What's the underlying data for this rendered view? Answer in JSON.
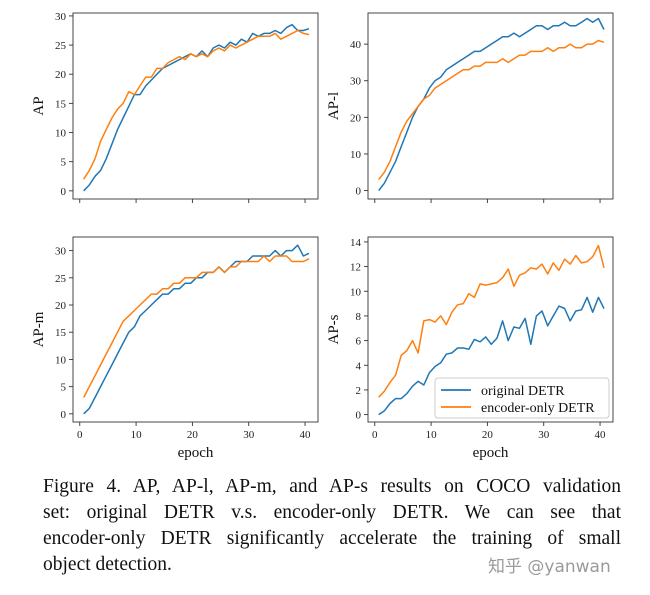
{
  "chart_data": [
    {
      "type": "line",
      "ylabel": "AP",
      "xlabel": "",
      "xlim": [
        -1.2,
        42.3
      ],
      "ylim": [
        -1.4,
        30.5
      ],
      "yticks": [
        0,
        5,
        10,
        15,
        20,
        25,
        30
      ],
      "xticks": [
        0,
        10,
        20,
        30,
        40
      ],
      "show_xtick_labels": false,
      "x": [
        1,
        2,
        3,
        4,
        5,
        6,
        7,
        8,
        9,
        10,
        11,
        12,
        13,
        14,
        15,
        16,
        17,
        18,
        19,
        20,
        21,
        22,
        23,
        24,
        25,
        26,
        27,
        28,
        29,
        30,
        31,
        32,
        33,
        34,
        35,
        36,
        37,
        38,
        39,
        40,
        41
      ],
      "series": [
        {
          "name": "original DETR",
          "color": "#1f77b4",
          "values": [
            0,
            1,
            2.5,
            3.5,
            5.5,
            8,
            10.5,
            12.5,
            14.5,
            16.5,
            16.5,
            18,
            19,
            20,
            21,
            21.5,
            22,
            22.5,
            23,
            23.5,
            23,
            24,
            23,
            24.5,
            25,
            24.5,
            25.5,
            25,
            26,
            25.5,
            27,
            26.5,
            27,
            27,
            27.5,
            27,
            28,
            28.5,
            27.5,
            27.5,
            27.8
          ]
        },
        {
          "name": "encoder-only DETR",
          "color": "#ff7f0e",
          "values": [
            2,
            3.5,
            5.5,
            8.5,
            10.5,
            12.5,
            14,
            15,
            17,
            16.5,
            18,
            19.5,
            19.5,
            21,
            21,
            22,
            22.5,
            23,
            22.5,
            23.5,
            23,
            23.5,
            23,
            24,
            24.5,
            24,
            25,
            24.5,
            25,
            25.5,
            26,
            26.5,
            26.5,
            26.5,
            27,
            26,
            26.5,
            27,
            27.5,
            27,
            26.8
          ]
        }
      ]
    },
    {
      "type": "line",
      "ylabel": "AP-l",
      "xlabel": "",
      "xlim": [
        -1.2,
        42.3
      ],
      "ylim": [
        -2.3,
        48.5
      ],
      "yticks": [
        0,
        10,
        20,
        30,
        40
      ],
      "xticks": [
        0,
        10,
        20,
        30,
        40
      ],
      "show_xtick_labels": false,
      "x": [
        1,
        2,
        3,
        4,
        5,
        6,
        7,
        8,
        9,
        10,
        11,
        12,
        13,
        14,
        15,
        16,
        17,
        18,
        19,
        20,
        21,
        22,
        23,
        24,
        25,
        26,
        27,
        28,
        29,
        30,
        31,
        32,
        33,
        34,
        35,
        36,
        37,
        38,
        39,
        40,
        41
      ],
      "series": [
        {
          "name": "original DETR",
          "color": "#1f77b4",
          "values": [
            0,
            2,
            5,
            8,
            12,
            16,
            20,
            23,
            25,
            28,
            30,
            31,
            33,
            34,
            35,
            36,
            37,
            38,
            38,
            39,
            40,
            41,
            42,
            42,
            43,
            42,
            43,
            44,
            45,
            45,
            44,
            45,
            45,
            46,
            45,
            45,
            46,
            47,
            46,
            47,
            44
          ]
        },
        {
          "name": "encoder-only DETR",
          "color": "#ff7f0e",
          "values": [
            3,
            5,
            8,
            12,
            16,
            19,
            21,
            23,
            25,
            26,
            28,
            29,
            30,
            31,
            32,
            33,
            33,
            34,
            34,
            35,
            35,
            35,
            36,
            35,
            36,
            37,
            37,
            38,
            38,
            38,
            39,
            38,
            39,
            39,
            40,
            39,
            39,
            40,
            40,
            41,
            40.5
          ]
        }
      ]
    },
    {
      "type": "line",
      "ylabel": "AP-m",
      "xlabel": "epoch",
      "xlim": [
        -1.2,
        42.3
      ],
      "ylim": [
        -1.5,
        32.5
      ],
      "yticks": [
        0,
        5,
        10,
        15,
        20,
        25,
        30
      ],
      "xticks": [
        0,
        10,
        20,
        30,
        40
      ],
      "show_xtick_labels": true,
      "x": [
        1,
        2,
        3,
        4,
        5,
        6,
        7,
        8,
        9,
        10,
        11,
        12,
        13,
        14,
        15,
        16,
        17,
        18,
        19,
        20,
        21,
        22,
        23,
        24,
        25,
        26,
        27,
        28,
        29,
        30,
        31,
        32,
        33,
        34,
        35,
        36,
        37,
        38,
        39,
        40,
        41
      ],
      "series": [
        {
          "name": "original DETR",
          "color": "#1f77b4",
          "values": [
            0,
            1,
            3,
            5,
            7,
            9,
            11,
            13,
            15,
            16,
            18,
            19,
            20,
            21,
            22,
            22,
            23,
            23,
            24,
            24,
            25,
            25,
            26,
            26,
            27,
            26,
            27,
            28,
            28,
            28,
            29,
            29,
            29,
            29,
            30,
            29,
            30,
            30,
            31,
            29,
            29.5
          ]
        },
        {
          "name": "encoder-only DETR",
          "color": "#ff7f0e",
          "values": [
            3,
            5,
            7,
            9,
            11,
            13,
            15,
            17,
            18,
            19,
            20,
            21,
            22,
            22,
            23,
            23,
            24,
            24,
            25,
            25,
            25,
            26,
            26,
            26,
            27,
            26,
            27,
            27,
            28,
            28,
            28,
            28,
            29,
            28,
            29,
            29,
            29,
            28,
            28,
            28,
            28.5
          ]
        }
      ]
    },
    {
      "type": "line",
      "ylabel": "AP-s",
      "xlabel": "epoch",
      "xlim": [
        -1.2,
        42.3
      ],
      "ylim": [
        -0.6,
        14.4
      ],
      "yticks": [
        0,
        2,
        4,
        6,
        8,
        10,
        12,
        14
      ],
      "xticks": [
        0,
        10,
        20,
        30,
        40
      ],
      "show_xtick_labels": true,
      "legend": "lower-right",
      "x": [
        1,
        2,
        3,
        4,
        5,
        6,
        7,
        8,
        9,
        10,
        11,
        12,
        13,
        14,
        15,
        16,
        17,
        18,
        19,
        20,
        21,
        22,
        23,
        24,
        25,
        26,
        27,
        28,
        29,
        30,
        31,
        32,
        33,
        34,
        35,
        36,
        37,
        38,
        39,
        40,
        41
      ],
      "series": [
        {
          "name": "original DETR",
          "color": "#1f77b4",
          "values": [
            0,
            0.3,
            0.9,
            1.3,
            1.3,
            1.7,
            2.3,
            2.7,
            2.4,
            3.4,
            3.9,
            4.2,
            4.9,
            5.0,
            5.4,
            5.4,
            5.3,
            6.1,
            5.9,
            6.3,
            5.7,
            6.2,
            7.6,
            6.0,
            7.1,
            7.0,
            7.8,
            5.7,
            8.0,
            8.4,
            7.2,
            8.0,
            8.8,
            8.6,
            7.6,
            8.4,
            8.5,
            9.5,
            8.3,
            9.5,
            8.6
          ]
        },
        {
          "name": "encoder-only DETR",
          "color": "#ff7f0e",
          "values": [
            1.4,
            1.9,
            2.6,
            3.2,
            4.8,
            5.2,
            6.0,
            5.0,
            7.6,
            7.7,
            7.5,
            8.0,
            7.3,
            8.3,
            8.9,
            9.0,
            9.8,
            9.5,
            10.6,
            10.5,
            10.6,
            10.7,
            11.1,
            11.8,
            10.4,
            11.3,
            11.5,
            11.9,
            11.8,
            12.2,
            11.4,
            12.3,
            11.7,
            12.6,
            12.2,
            12.9,
            12.3,
            12.4,
            12.8,
            13.7,
            11.9
          ]
        }
      ]
    }
  ],
  "caption": {
    "lines": [
      "Figure 4. AP, AP-l, AP-m, and AP-s results on COCO validation",
      "set:  original DETR v.s.  encoder-only DETR. We can see that",
      "encoder-only DETR significantly accelerate the training of small",
      "object detection."
    ]
  },
  "watermark": "知乎 @yanwan"
}
